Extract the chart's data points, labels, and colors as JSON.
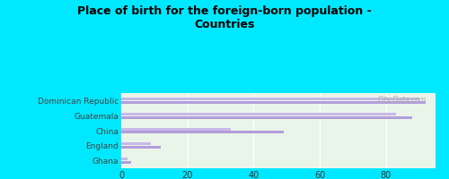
{
  "title": "Place of birth for the foreign-born population -\nCountries",
  "categories": [
    "Dominican Republic",
    "Guatemala",
    "China",
    "England",
    "Ghana"
  ],
  "values1": [
    92,
    88,
    49,
    12,
    3
  ],
  "values2": [
    90,
    83,
    33,
    9,
    2
  ],
  "bar_color1": "#b39ddb",
  "bar_color2": "#c9b8e8",
  "background_outer": "#00e8ff",
  "background_inner": "#eaf5ea",
  "xlim": [
    0,
    95
  ],
  "xticks": [
    0,
    20,
    40,
    60,
    80
  ],
  "bar_height": 0.18,
  "bar_gap": 0.05,
  "watermark": "City-Data.com"
}
